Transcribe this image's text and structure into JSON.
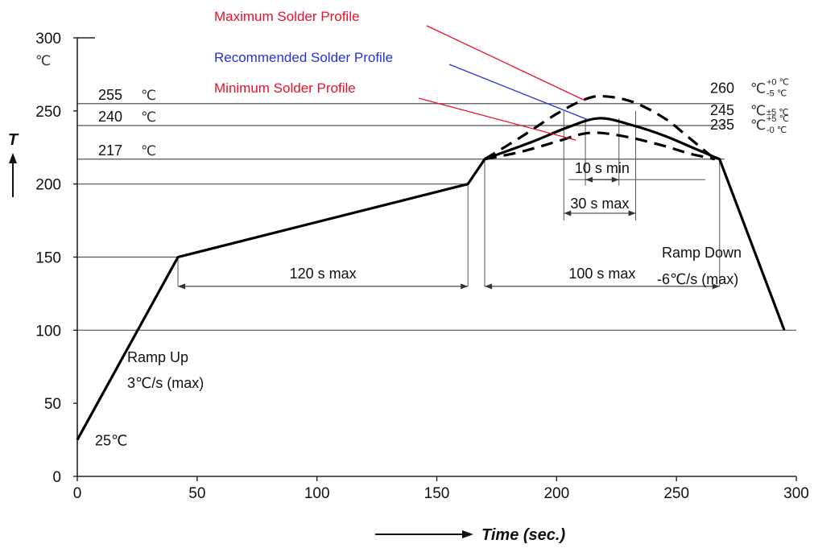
{
  "chart_data": {
    "type": "line",
    "xlabel": "Time (sec.)",
    "ylabel": "T",
    "xlim": [
      0,
      300
    ],
    "ylim": [
      0,
      300
    ],
    "x_ticks": [
      "0",
      "50",
      "100",
      "150",
      "200",
      "250",
      "300"
    ],
    "y_ticks": [
      "0",
      "50",
      "100",
      "150",
      "200",
      "250",
      "300"
    ],
    "y_unit": "℃",
    "grid": "horizontal reference lines at 100, 150, 200, 217, 240, 255 ℃",
    "series": [
      {
        "name": "Recommended Solder Profile",
        "style": "solid",
        "x": [
          0,
          42,
          163,
          170,
          190,
          205,
          218,
          232,
          245,
          258,
          268,
          295
        ],
        "y": [
          25,
          150,
          200,
          217,
          229,
          239,
          245,
          240,
          233,
          224,
          217,
          100
        ]
      },
      {
        "name": "Maximum Solder Profile",
        "style": "dashed",
        "x": [
          170,
          185,
          200,
          212,
          220,
          232,
          245,
          255,
          266
        ],
        "y": [
          217,
          232,
          248,
          258,
          260,
          256,
          245,
          232,
          217
        ]
      },
      {
        "name": "Minimum Solder Profile",
        "style": "dashed",
        "x": [
          170,
          185,
          200,
          210,
          218,
          230,
          245,
          255,
          266
        ],
        "y": [
          217,
          222,
          229,
          234,
          235,
          232,
          226,
          221,
          217
        ]
      }
    ],
    "reference_lines": [
      {
        "y": 100,
        "x_from": 0,
        "x_to": 300
      },
      {
        "y": 150,
        "x_from": 0,
        "x_to": 42
      },
      {
        "y": 200,
        "x_from": 0,
        "x_to": 163
      },
      {
        "y": 217,
        "x_from": 0,
        "x_to": 270
      },
      {
        "y": 240,
        "x_from": 0,
        "x_to": 270
      },
      {
        "y": 255,
        "x_from": 0,
        "x_to": 270
      }
    ],
    "left_temperature_labels": [
      {
        "value": "255",
        "unit": "℃",
        "y": 255
      },
      {
        "value": "240",
        "unit": "℃",
        "y": 240
      },
      {
        "value": "217",
        "unit": "℃",
        "y": 217
      },
      {
        "value": "25",
        "unit": "℃",
        "y": 25
      }
    ],
    "right_temperature_labels": [
      {
        "value": "260",
        "unit": "℃",
        "tol_top": "+0 ℃",
        "tol_bottom": "-5 ℃",
        "y": 260
      },
      {
        "value": "245",
        "unit": "℃",
        "tol": "±5 ℃",
        "y": 245
      },
      {
        "value": "235",
        "unit": "℃",
        "tol_top": "+5 ℃",
        "tol_bottom": "-0 ℃",
        "y": 235
      }
    ],
    "dimensions": [
      {
        "label": "120 s max",
        "x_from": 42,
        "x_to": 163,
        "y": 130
      },
      {
        "label": "100 s max",
        "x_from": 170,
        "x_to": 268,
        "y": 130
      },
      {
        "label": "10 s min",
        "x_from": 212,
        "x_to": 226,
        "y": 203
      },
      {
        "label": "30 s max",
        "x_from": 203,
        "x_to": 233,
        "y": 180
      }
    ],
    "annotations": [
      {
        "text_lines": [
          "Ramp Up",
          "3℃/s (max)"
        ]
      },
      {
        "text_lines": [
          "Ramp Down",
          "-6℃/s (max)"
        ]
      }
    ],
    "legend_callouts": [
      {
        "text": "Maximum Solder Profile",
        "color": "#e8102a"
      },
      {
        "text": "Recommended Solder Profile",
        "color": "#2233dd"
      },
      {
        "text": "Minimum Solder Profile",
        "color": "#e8102a"
      }
    ]
  }
}
